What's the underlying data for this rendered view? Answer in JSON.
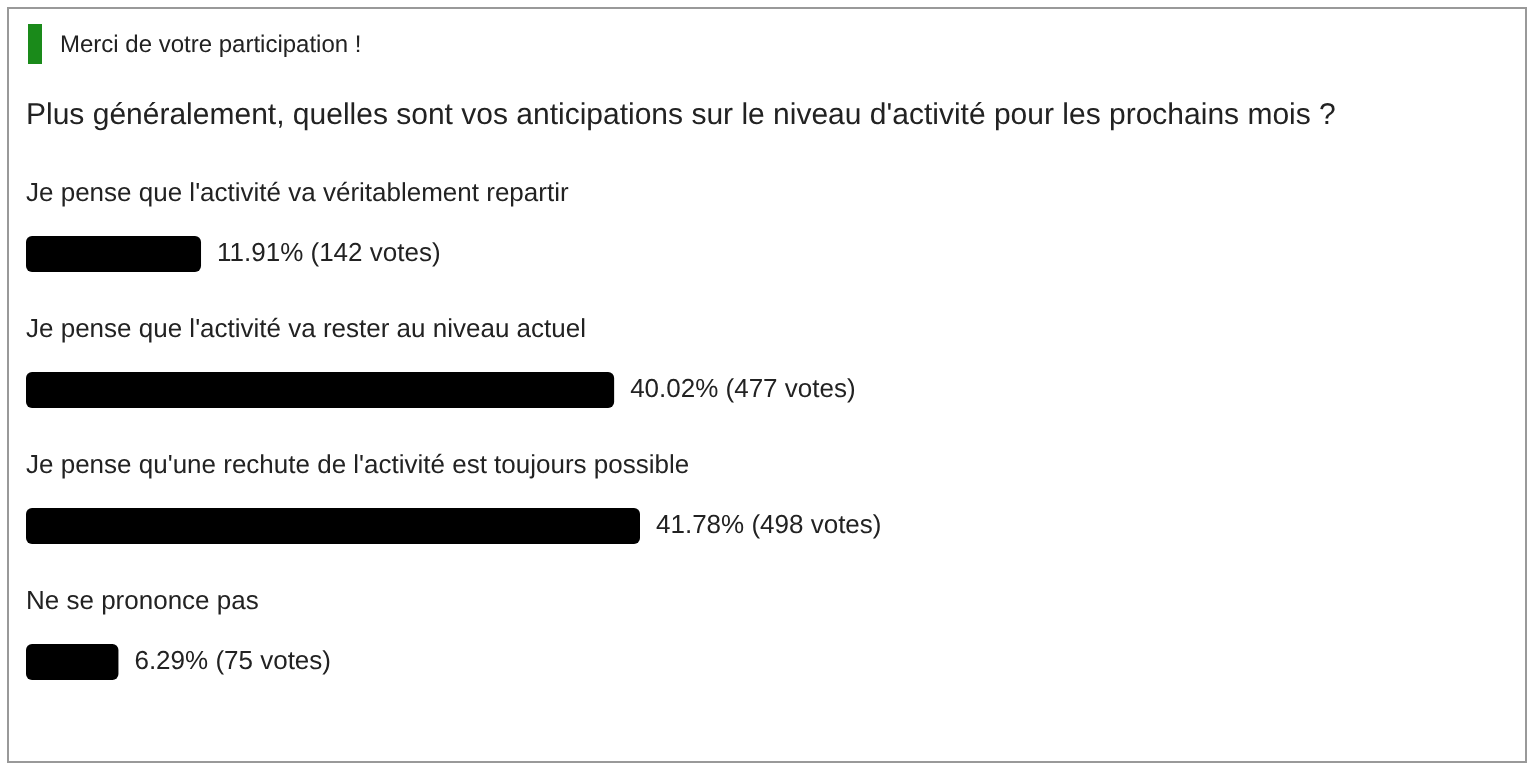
{
  "chart_data": {
    "type": "bar",
    "orientation": "horizontal",
    "subtitle": "Merci de votre participation !",
    "title": "Plus généralement, quelles sont vos anticipations sur le niveau d'activité pour les prochains mois ?",
    "categories": [
      "Je pense que l'activité va véritablement repartir",
      "Je pense que l'activité va rester au niveau actuel",
      "Je pense qu'une rechute de l'activité est toujours possible",
      "Ne se prononce pas"
    ],
    "values": [
      11.91,
      40.02,
      41.78,
      6.29
    ],
    "value_labels": [
      "11.91% (142 votes)",
      "40.02% (477 votes)",
      "41.78% (498 votes)",
      "6.29% (75 votes)"
    ],
    "color": "#000000"
  }
}
